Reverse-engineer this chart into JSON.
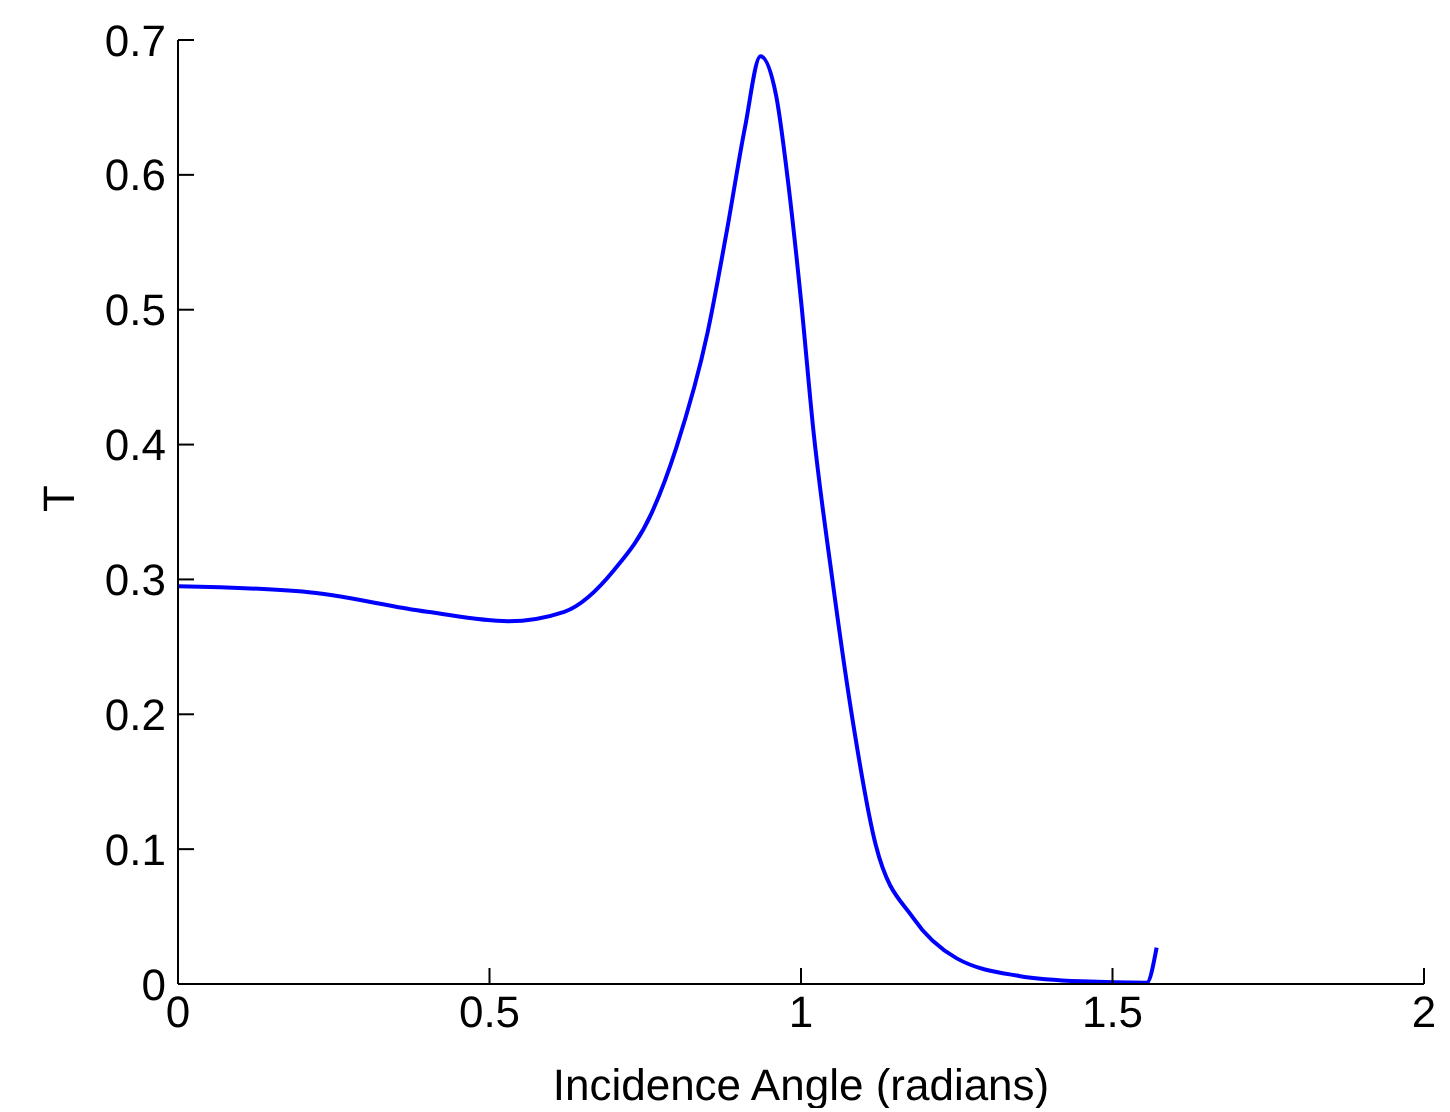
{
  "chart_data": {
    "type": "line",
    "xlabel": "Incidence Angle (radians)",
    "ylabel": "T",
    "xlim": [
      0,
      2
    ],
    "xticks": [
      0,
      0.5,
      1,
      1.5,
      2
    ],
    "ylim": [
      0,
      0.7
    ],
    "yticks": [
      0,
      0.1,
      0.2,
      0.3,
      0.4,
      0.5,
      0.6,
      0.7
    ],
    "grid": false,
    "legend": false,
    "marker": "none",
    "line_style": "solid",
    "x": [
      0,
      0.2,
      0.4,
      0.53,
      0.62,
      0.7,
      0.76,
      0.8,
      0.85,
      0.88,
      0.91,
      0.935,
      0.96,
      0.98,
      1.0,
      1.02,
      1.05,
      1.08,
      1.12,
      1.18,
      1.25,
      1.35,
      1.45,
      1.555,
      1.5708
    ],
    "series": [
      {
        "color": "#0000ff",
        "values": [
          0.295,
          0.291,
          0.276,
          0.269,
          0.276,
          0.307,
          0.349,
          0.398,
          0.483,
          0.556,
          0.635,
          0.688,
          0.659,
          0.592,
          0.507,
          0.41,
          0.301,
          0.204,
          0.103,
          0.049,
          0.019,
          0.006,
          0.002,
          0.001,
          0.027
        ]
      }
    ]
  }
}
